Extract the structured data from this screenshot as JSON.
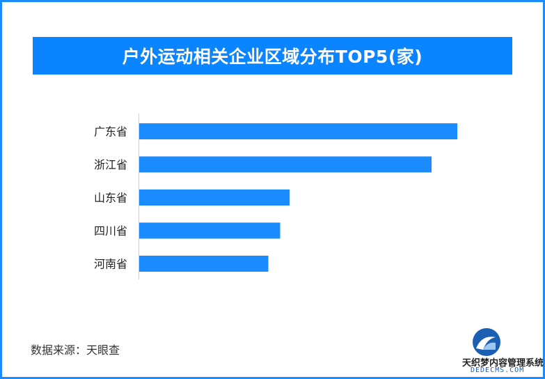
{
  "title": "户外运动相关企业区域分布TOP5(家)",
  "source": "数据来源：天眼查",
  "watermark": {
    "brand_text": "织梦内容管理系统",
    "prefix": "天",
    "domain_text": "DEDECMS.COM",
    "icon": "dedecms-logo-icon"
  },
  "colors": {
    "accent": "#0a84ff",
    "bar": "#1a8cff",
    "border": "#1a8cff"
  },
  "chart_data": {
    "type": "bar",
    "orientation": "horizontal",
    "title": "户外运动相关企业区域分布TOP5(家)",
    "categories": [
      "广东省",
      "浙江省",
      "山东省",
      "四川省",
      "河南省"
    ],
    "values": [
      1000,
      919,
      473,
      443,
      406
    ],
    "xlim": [
      0,
      1000
    ],
    "xlabel": "",
    "ylabel": "",
    "grid": false,
    "legend": "none",
    "data_labels": false
  }
}
